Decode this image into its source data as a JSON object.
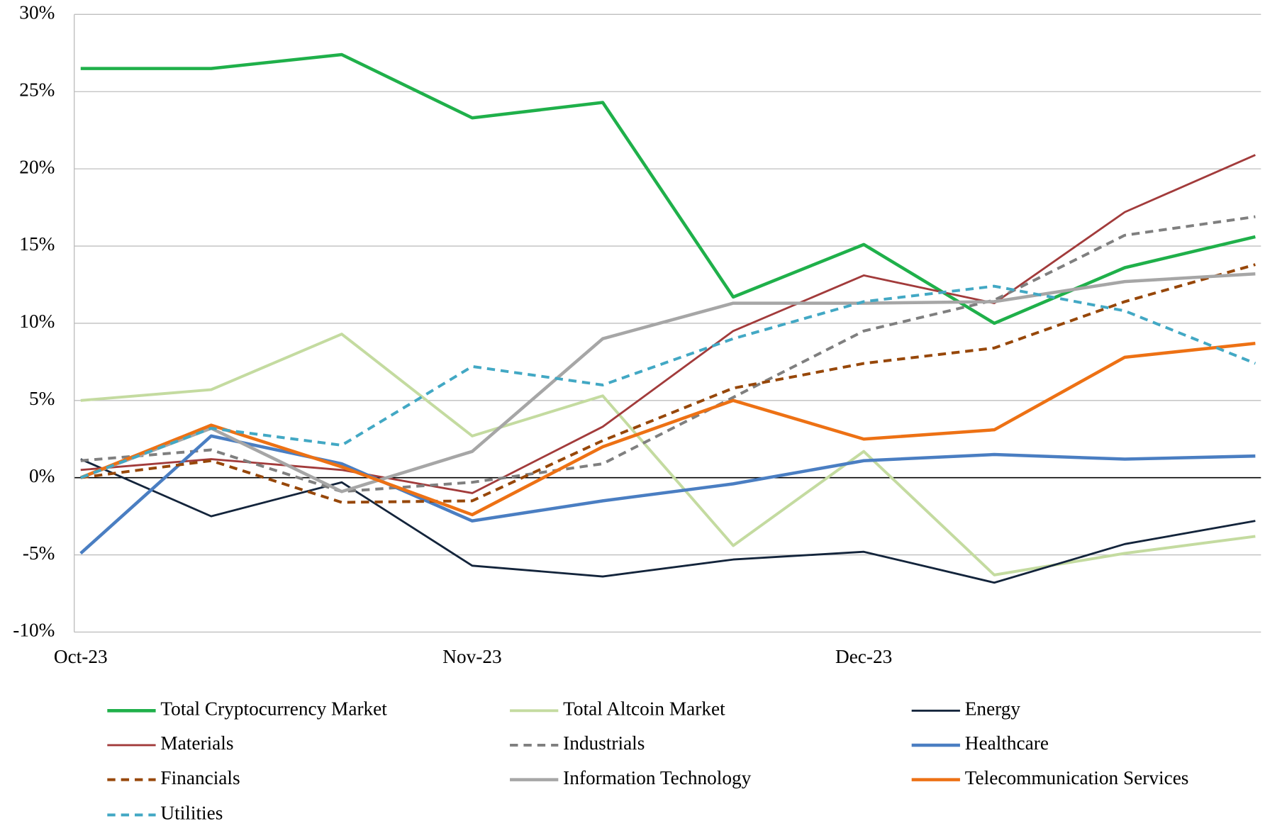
{
  "chart_data": {
    "type": "line",
    "categories": [
      "Oct-23",
      null,
      null,
      "Nov-23",
      null,
      null,
      "Dec-23",
      null,
      null,
      null
    ],
    "ylim": [
      -10,
      30
    ],
    "yticks": [
      {
        "value": -10,
        "label": "-10%"
      },
      {
        "value": -5,
        "label": "-5%"
      },
      {
        "value": 0,
        "label": "0%"
      },
      {
        "value": 5,
        "label": "5%"
      },
      {
        "value": 10,
        "label": "10%"
      },
      {
        "value": 15,
        "label": "15%"
      },
      {
        "value": 20,
        "label": "20%"
      },
      {
        "value": 25,
        "label": "25%"
      },
      {
        "value": 30,
        "label": "30%"
      }
    ],
    "grid": true,
    "legend": "bottom",
    "series": [
      {
        "name": "Total Cryptocurrency Market",
        "color": "#1fb04a",
        "width": 4,
        "dashed": false,
        "values": [
          26.5,
          26.5,
          27.4,
          23.3,
          24.3,
          11.7,
          15.1,
          10.0,
          13.6,
          15.6
        ]
      },
      {
        "name": "Total Altcoin Market",
        "color": "#c4dba0",
        "width": 3.5,
        "dashed": false,
        "values": [
          5.0,
          5.7,
          9.3,
          2.7,
          5.3,
          -4.4,
          1.7,
          -6.3,
          -4.9,
          -3.8
        ]
      },
      {
        "name": "Energy",
        "color": "#13243b",
        "width": 2.5,
        "dashed": false,
        "values": [
          1.2,
          -2.5,
          -0.3,
          -5.7,
          -6.4,
          -5.3,
          -4.8,
          -6.8,
          -4.3,
          -2.8
        ]
      },
      {
        "name": "Materials",
        "color": "#a23b3b",
        "width": 2.5,
        "dashed": false,
        "values": [
          0.5,
          1.2,
          0.5,
          -1.0,
          3.3,
          9.5,
          13.1,
          11.3,
          17.2,
          20.9
        ]
      },
      {
        "name": "Industrials",
        "color": "#7f7f7f",
        "width": 3.5,
        "dashed": true,
        "values": [
          1.1,
          1.8,
          -0.9,
          -0.3,
          0.9,
          5.2,
          9.5,
          11.5,
          15.7,
          16.9
        ]
      },
      {
        "name": "Healthcare",
        "color": "#4a7ec2",
        "width": 4,
        "dashed": false,
        "values": [
          -4.9,
          2.7,
          0.9,
          -2.8,
          -1.5,
          -0.4,
          1.1,
          1.5,
          1.2,
          1.4
        ]
      },
      {
        "name": "Financials",
        "color": "#974709",
        "width": 3.5,
        "dashed": true,
        "values": [
          0.0,
          1.1,
          -1.6,
          -1.5,
          2.4,
          5.8,
          7.4,
          8.4,
          11.4,
          13.8
        ]
      },
      {
        "name": "Information Technology",
        "color": "#a6a6a6",
        "width": 4,
        "dashed": false,
        "values": [
          0.0,
          3.2,
          -0.9,
          1.7,
          9.0,
          11.3,
          11.3,
          11.4,
          12.7,
          13.2
        ]
      },
      {
        "name": "Telecommunication Services",
        "color": "#ed7114",
        "width": 4,
        "dashed": false,
        "values": [
          0.0,
          3.4,
          0.7,
          -2.4,
          2.0,
          5.0,
          2.5,
          3.1,
          7.8,
          8.7
        ]
      },
      {
        "name": "Utilities",
        "color": "#42a8c4",
        "width": 3.5,
        "dashed": true,
        "values": [
          0.0,
          3.2,
          2.1,
          7.2,
          6.0,
          9.0,
          11.4,
          12.4,
          10.8,
          7.4
        ]
      }
    ]
  }
}
